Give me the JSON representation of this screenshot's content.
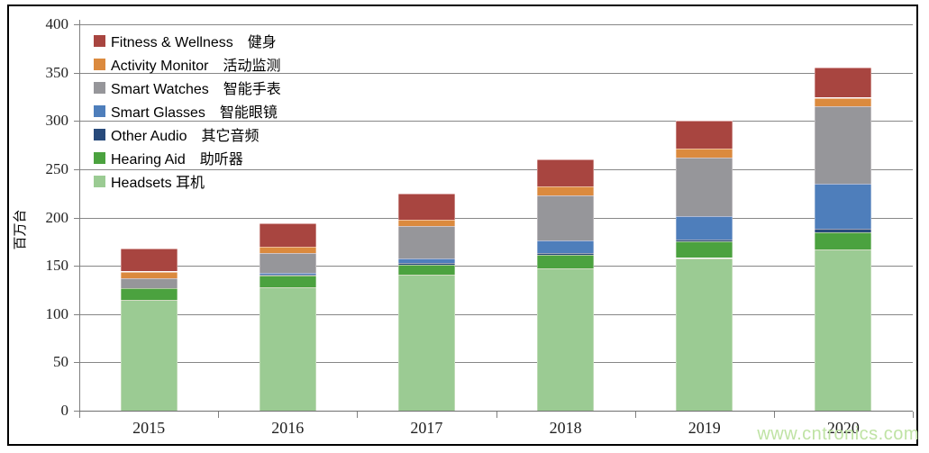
{
  "watermark": "www.cntronics.com",
  "colors": {
    "grid": "#878787",
    "axis": "#808080",
    "border": "#000000",
    "tick_label": "#1f1f1f",
    "watermark": "#bfe3a4"
  },
  "chart_data": {
    "type": "bar",
    "stacked": true,
    "title": "",
    "xlabel": "",
    "ylabel": "百万台",
    "ylim": [
      0,
      400
    ],
    "ytick_step": 50,
    "grid": true,
    "legend_position": "inside-top-left",
    "categories": [
      "2015",
      "2016",
      "2017",
      "2018",
      "2019",
      "2020"
    ],
    "series": [
      {
        "name": "Headsets 耳机",
        "color": "#9BCB93",
        "values": [
          115,
          128,
          141,
          147,
          158,
          167
        ]
      },
      {
        "name": "Hearing Aid　助听器",
        "color": "#4BA23F",
        "values": [
          12,
          12,
          10,
          14,
          17,
          18
        ]
      },
      {
        "name": "Other Audio　其它音频",
        "color": "#284A7B",
        "values": [
          0,
          1,
          2,
          2,
          2,
          3
        ]
      },
      {
        "name": "Smart Glasses　智能眼镜",
        "color": "#4E7EBB",
        "values": [
          0,
          2,
          5,
          13,
          24,
          47
        ]
      },
      {
        "name": "Smart Watches　智能手表",
        "color": "#96969A",
        "values": [
          10,
          20,
          33,
          47,
          61,
          80
        ]
      },
      {
        "name": "Activity Monitor　活动监测",
        "color": "#DB8A3E",
        "values": [
          7,
          7,
          7,
          9,
          9,
          9
        ]
      },
      {
        "name": "Fitness & Wellness　健身",
        "color": "#A84540",
        "values": [
          24,
          24,
          27,
          28,
          29,
          31
        ]
      }
    ],
    "totals": [
      168,
      194,
      225,
      260,
      300,
      355
    ],
    "legend_top_to_bottom": [
      "Fitness & Wellness　健身",
      "Activity Monitor　活动监测",
      "Smart Watches　智能手表",
      "Smart Glasses　智能眼镜",
      "Other Audio　其它音频",
      "Hearing Aid　助听器",
      "Headsets 耳机"
    ]
  }
}
